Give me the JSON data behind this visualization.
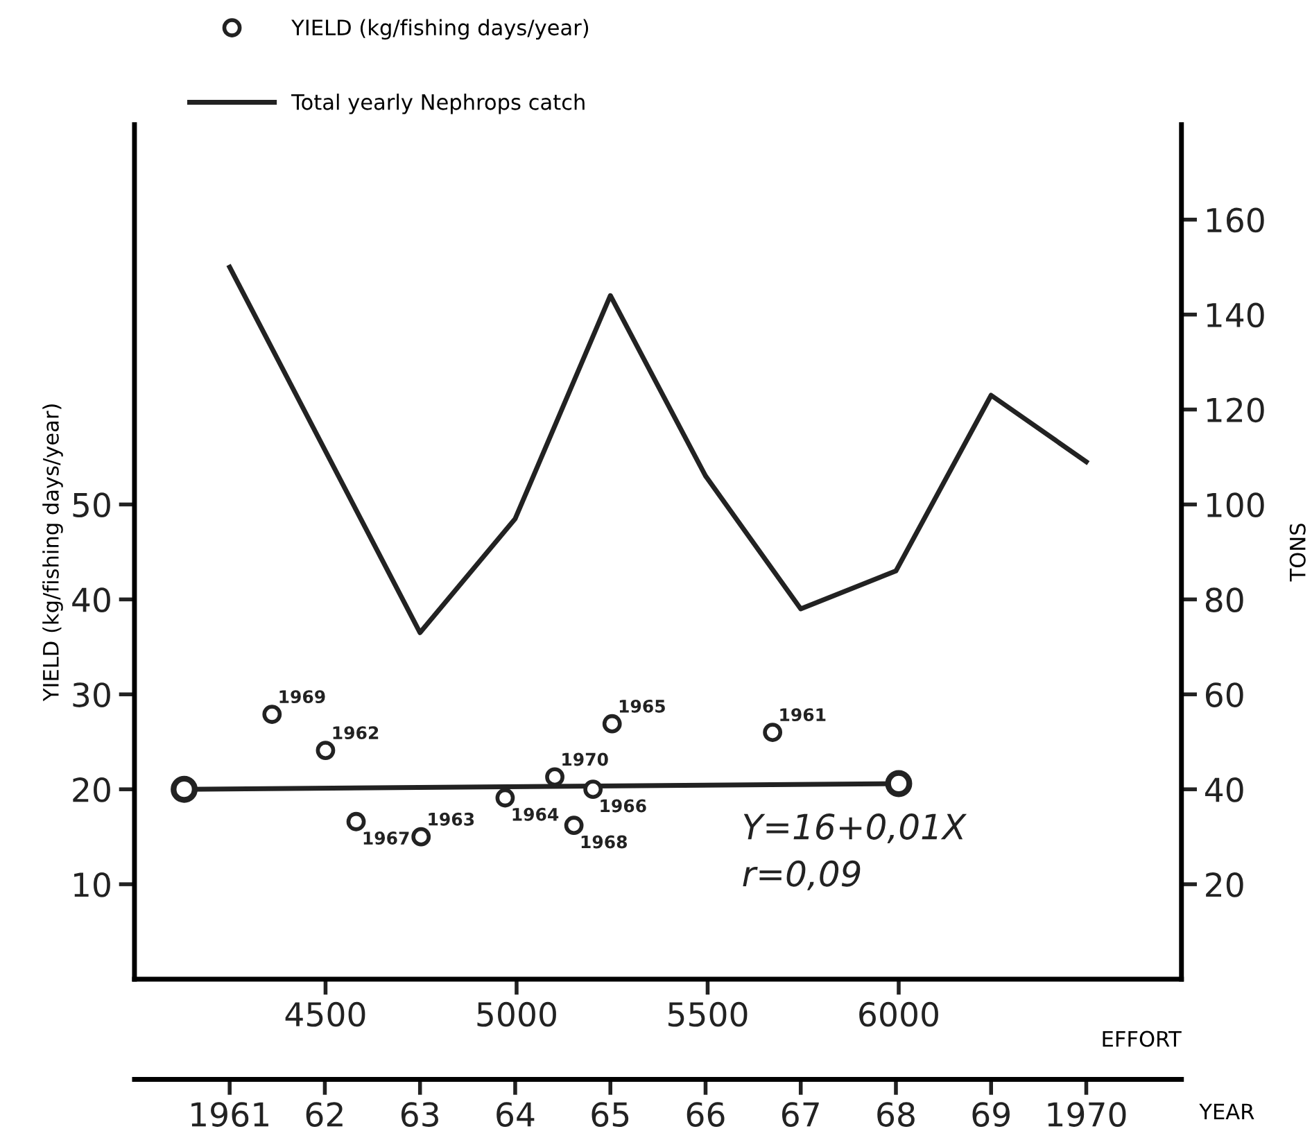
{
  "chart_data": [
    {
      "type": "scatter",
      "xlabel": "EFFORT",
      "ylabel": "YIELD (kg/fishing days/year)",
      "xlim": [
        4000,
        6740
      ],
      "xticks": [
        4500,
        5000,
        5500,
        6000
      ],
      "ylim": [
        0,
        90
      ],
      "yticks": [
        10,
        20,
        30,
        40,
        50
      ],
      "grid": false,
      "legend": "top left",
      "marker": "circle",
      "series": [
        {
          "name": "YIELD (kg/fishing days/year)",
          "color": "#222222",
          "x": [
            4360,
            4500,
            4580,
            4750,
            4970,
            5100,
            5150,
            5200,
            5250,
            5670
          ],
          "values": [
            27.9,
            24.1,
            16.6,
            15.0,
            19.1,
            21.3,
            16.2,
            20.0,
            26.9,
            26.0
          ]
        },
        {
          "type": "line",
          "marker": "circle",
          "color": "#222222",
          "x": [
            4130,
            6000
          ],
          "values": [
            20.0,
            20.6
          ]
        }
      ],
      "annotations": [
        {
          "text": "1969",
          "x": 4360,
          "y": 27.9
        },
        {
          "text": "1962",
          "x": 4500,
          "y": 24.1
        },
        {
          "text": "1967",
          "x": 4580,
          "y": 16.6
        },
        {
          "text": "1963",
          "x": 4750,
          "y": 15.0
        },
        {
          "text": "1964",
          "x": 4970,
          "y": 19.1
        },
        {
          "text": "1970",
          "x": 5100,
          "y": 21.3
        },
        {
          "text": "1968",
          "x": 5150,
          "y": 16.2
        },
        {
          "text": "1966",
          "x": 5200,
          "y": 20.0
        },
        {
          "text": "1965",
          "x": 5250,
          "y": 26.9
        },
        {
          "text": "1961",
          "x": 5670,
          "y": 26.0
        },
        "Y=16+0,01X",
        "r=0,09"
      ]
    },
    {
      "type": "line",
      "xlabel": "YEAR",
      "y2label": "TONS",
      "xlim": [
        1960,
        1971
      ],
      "xticks": [
        1961,
        {
          "value": 1962,
          "label": "62"
        },
        {
          "value": 1963,
          "label": "63"
        },
        {
          "value": 1964,
          "label": "64"
        },
        {
          "value": 1965,
          "label": "65"
        },
        {
          "value": 1966,
          "label": "66"
        },
        {
          "value": 1967,
          "label": "67"
        },
        {
          "value": 1968,
          "label": "68"
        },
        {
          "value": 1969,
          "label": "69"
        },
        1970
      ],
      "y2lim": [
        0,
        180
      ],
      "y2ticks": [
        20,
        40,
        60,
        80,
        100,
        120,
        140,
        160
      ],
      "grid": false,
      "legend": "top left",
      "series": [
        {
          "name": "Total yearly Nephrops catch",
          "axis": "y2",
          "marker": "none",
          "color": "#222222",
          "x": [
            1961,
            1963,
            1964,
            1965,
            1966,
            1967,
            1968,
            1969,
            1970
          ],
          "values": [
            150,
            73,
            97,
            144,
            106,
            78,
            86,
            123,
            109
          ]
        }
      ]
    }
  ]
}
